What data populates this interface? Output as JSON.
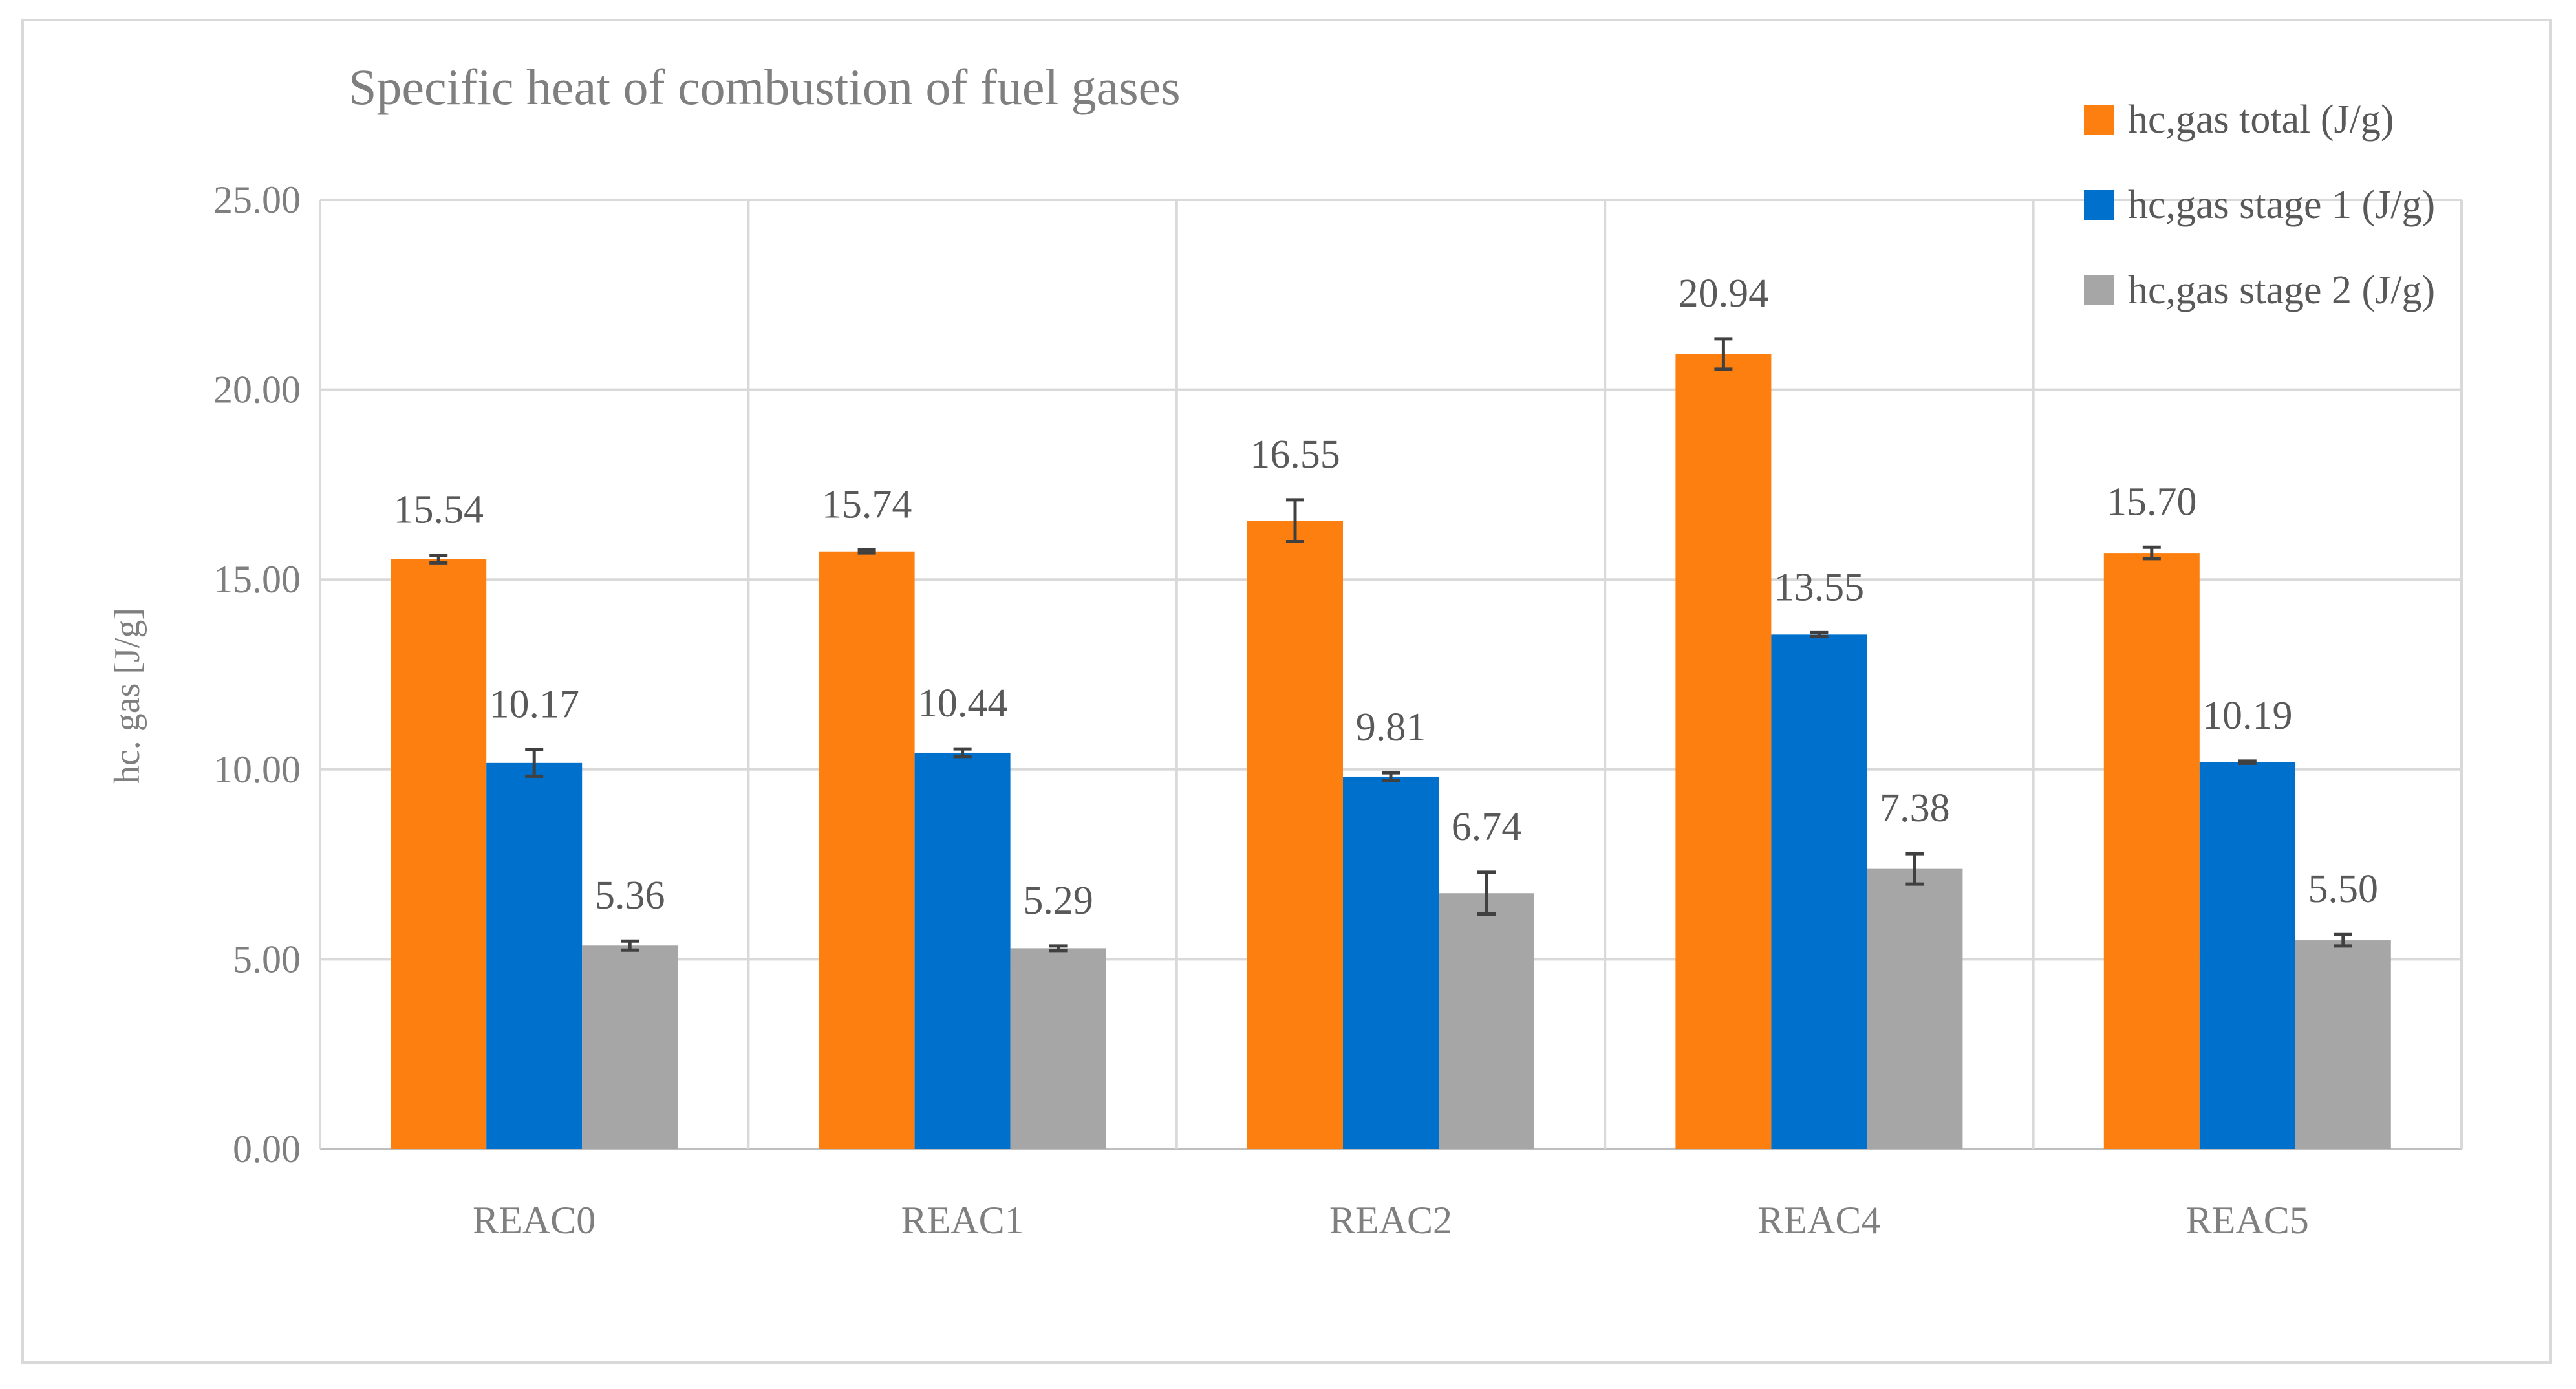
{
  "chart_data": {
    "type": "bar",
    "title": "Specific heat of combustion of fuel gases",
    "xlabel": "",
    "ylabel": "hc. gas [J/g]",
    "ylim": [
      0,
      25
    ],
    "yticks": [
      "0.00",
      "5.00",
      "10.00",
      "15.00",
      "20.00",
      "25.00"
    ],
    "ytick_values": [
      0,
      5,
      10,
      15,
      20,
      25
    ],
    "categories": [
      "REAC0",
      "REAC1",
      "REAC2",
      "REAC4",
      "REAC5"
    ],
    "series": [
      {
        "name": "hc,gas total (J/g)",
        "color": "#fd7f0f",
        "values": [
          15.54,
          15.74,
          16.55,
          20.94,
          15.7
        ],
        "labels": [
          "15.54",
          "15.74",
          "16.55",
          "20.94",
          "15.70"
        ],
        "errors": [
          0.1,
          0.04,
          0.55,
          0.4,
          0.15
        ]
      },
      {
        "name": "hc,gas stage 1 (J/g)",
        "color": "#0070cd",
        "values": [
          10.17,
          10.44,
          9.81,
          13.55,
          10.19
        ],
        "labels": [
          "10.17",
          "10.44",
          "9.81",
          "13.55",
          "10.19"
        ],
        "errors": [
          0.35,
          0.1,
          0.1,
          0.05,
          0.03
        ]
      },
      {
        "name": "hc,gas stage 2 (J/g)",
        "color": "#a6a6a6",
        "values": [
          5.36,
          5.29,
          6.74,
          7.38,
          5.5
        ],
        "labels": [
          "5.36",
          "5.29",
          "6.74",
          "7.38",
          "5.50"
        ],
        "errors": [
          0.12,
          0.06,
          0.55,
          0.4,
          0.15
        ]
      }
    ],
    "grid": true,
    "legend_position": "top-right"
  }
}
